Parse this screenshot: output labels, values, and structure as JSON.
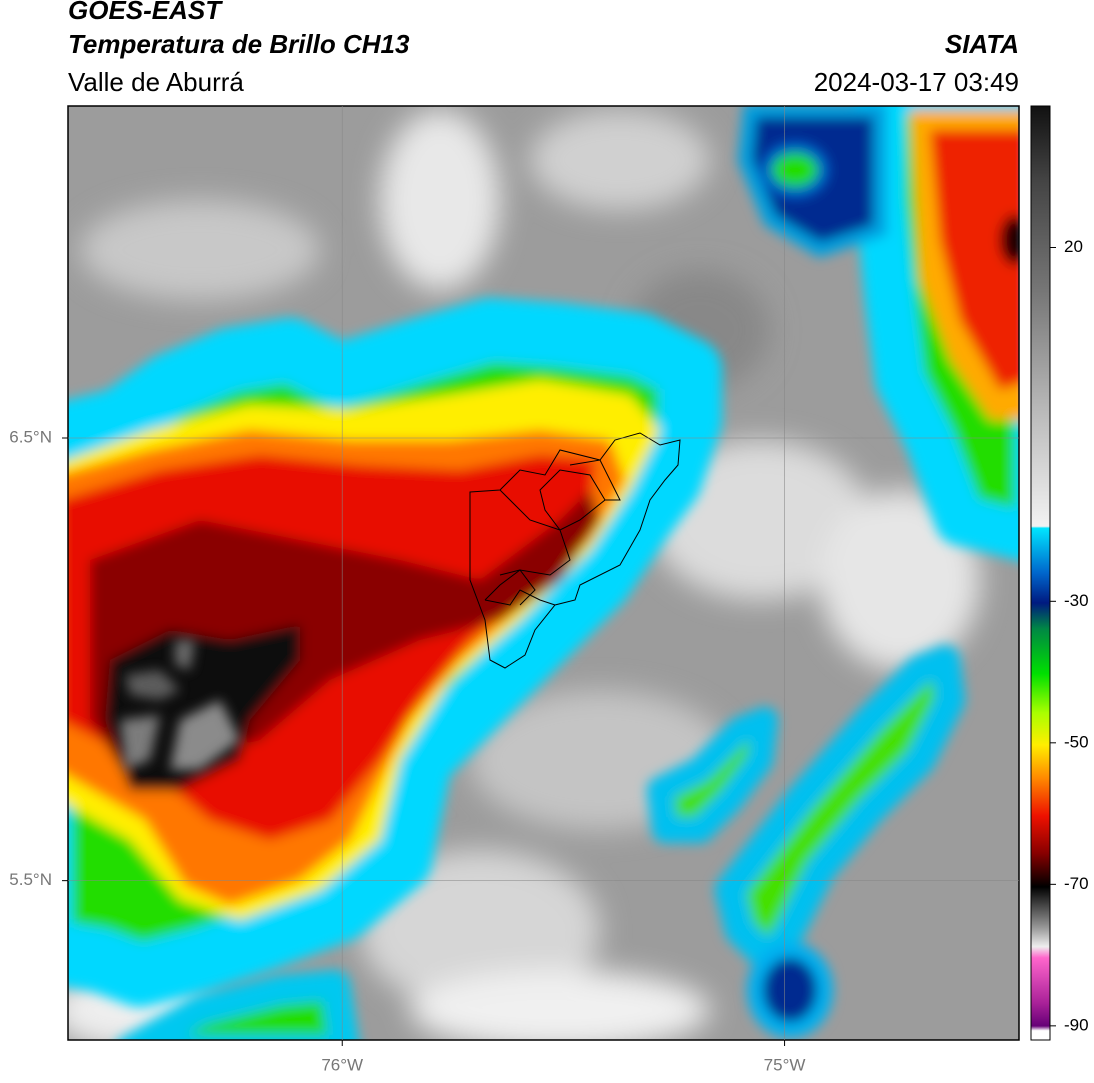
{
  "header": {
    "satellite": "GOES-EAST",
    "product": "Temperatura de Brillo CH13",
    "agency": "SIATA",
    "region": "Valle de Aburrá",
    "datetime": "2024-03-17 03:49"
  },
  "map": {
    "xlim": [
      -76.62,
      -74.47
    ],
    "ylim": [
      5.14,
      7.25
    ],
    "xticks": [
      {
        "value": -76,
        "label": "76°W"
      },
      {
        "value": -75,
        "label": "75°W"
      }
    ],
    "yticks": [
      {
        "value": 6.5,
        "label": "6.5°N"
      },
      {
        "value": 5.5,
        "label": "5.5°N"
      }
    ],
    "grid": true
  },
  "colorbar": {
    "lim": [
      -92,
      40
    ],
    "ticks": [
      20,
      -30,
      -50,
      -70,
      -90
    ]
  }
}
